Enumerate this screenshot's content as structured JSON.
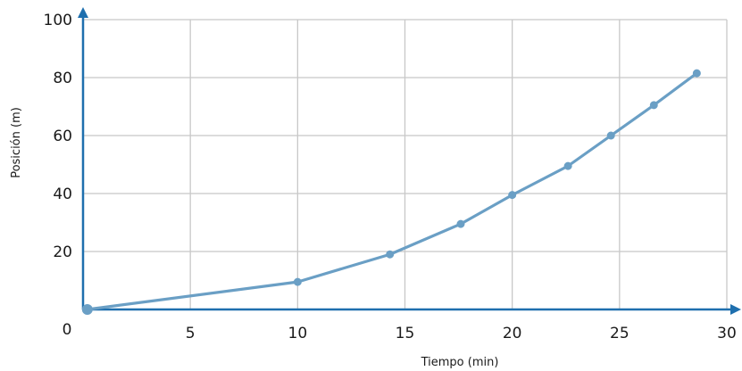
{
  "chart_data": {
    "type": "line",
    "title": "",
    "xlabel": "Tiempo (min)",
    "ylabel": "Posición (m)",
    "xlim": [
      0,
      30
    ],
    "ylim": [
      0,
      100
    ],
    "x_ticks": [
      5,
      10,
      15,
      20,
      25,
      30
    ],
    "y_ticks": [
      20,
      40,
      60,
      80,
      100
    ],
    "origin_label": "0",
    "grid": true,
    "colors": {
      "line": "#6a9fc5",
      "axis": "#1e6fae",
      "grid": "#c8c8c8"
    },
    "series": [
      {
        "x": [
          0.2,
          10,
          14.3,
          17.6,
          20,
          22.6,
          24.6,
          26.6,
          28.6
        ],
        "y": [
          0,
          9.5,
          19,
          29.5,
          39.5,
          49.5,
          60,
          70.5,
          81.5
        ]
      }
    ]
  }
}
